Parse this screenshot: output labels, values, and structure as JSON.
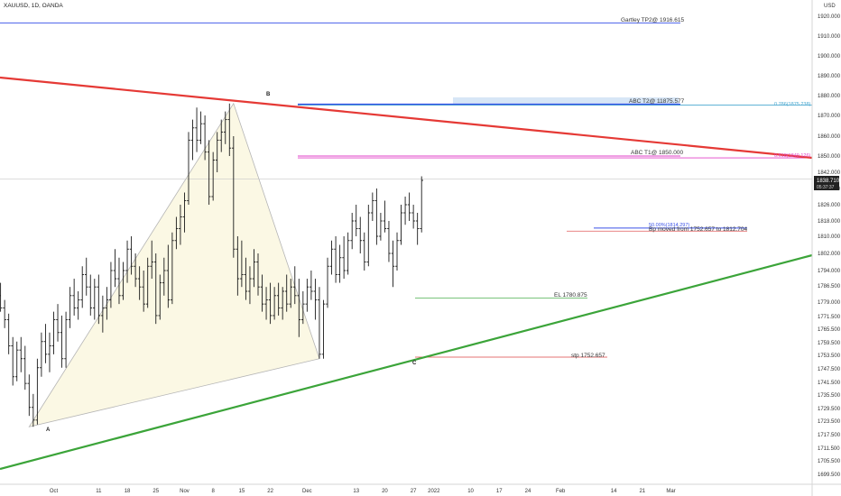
{
  "header": {
    "symbol": "XAUUSD, 1D, OANDA",
    "currency": "USD"
  },
  "colors": {
    "trend_red": "#e53935",
    "trend_green": "#3ba439",
    "level_blue": "#3a52e8",
    "level_magenta": "#e040c8",
    "level_cyan": "#4aa8d0",
    "stop_red": "#e57373",
    "entry_green": "#66bb6a",
    "harmonic_fill": "#fbf8e4",
    "bar": "#1a1a1a"
  },
  "chart_data": {
    "type": "ohlc",
    "ylim": [
      1695,
      1922
    ],
    "y_ticks": [
      1699.5,
      1705.5,
      1711.5,
      1717.5,
      1723.5,
      1729.5,
      1735.5,
      1741.5,
      1747.5,
      1753.5,
      1759.5,
      1765.5,
      1771.5,
      1779,
      1786.5,
      1794,
      1802,
      1810,
      1818,
      1826,
      1834,
      1842,
      1850,
      1860,
      1870,
      1880,
      1890,
      1900,
      1910,
      1920
    ],
    "y_tick_labels": [
      "1699.500",
      "1705.500",
      "1711.500",
      "1717.500",
      "1723.500",
      "1729.500",
      "1735.500",
      "1741.500",
      "1747.500",
      "1753.500",
      "1759.500",
      "1765.500",
      "1771.500",
      "1779.000",
      "1786.500",
      "1794.000",
      "1802.000",
      "1810.000",
      "1818.000",
      "1826.000",
      "1834.000",
      "1842.000",
      "1850.000",
      "1860.000",
      "1870.000",
      "1880.000",
      "1890.000",
      "1900.000",
      "1910.000",
      "1920.000"
    ],
    "x_labels": [
      {
        "day": 0,
        "label": "Oct"
      },
      {
        "day": 11,
        "label": "11"
      },
      {
        "day": 18,
        "label": "18"
      },
      {
        "day": 25,
        "label": "25"
      },
      {
        "day": 32,
        "label": "Nov"
      },
      {
        "day": 39,
        "label": "8"
      },
      {
        "day": 46,
        "label": "15"
      },
      {
        "day": 53,
        "label": "22"
      },
      {
        "day": 62,
        "label": "Dec"
      },
      {
        "day": 74,
        "label": "13"
      },
      {
        "day": 81,
        "label": "20"
      },
      {
        "day": 88,
        "label": "27"
      },
      {
        "day": 93,
        "label": "2022"
      },
      {
        "day": 102,
        "label": "10"
      },
      {
        "day": 109,
        "label": "17"
      },
      {
        "day": 116,
        "label": "24"
      },
      {
        "day": 124,
        "label": "Feb"
      },
      {
        "day": 137,
        "label": "14"
      },
      {
        "day": 144,
        "label": "21"
      },
      {
        "day": 151,
        "label": "Mar"
      }
    ],
    "bars": [
      [
        -14,
        1776,
        1786,
        1768,
        1782
      ],
      [
        -13,
        1782,
        1788,
        1774,
        1776
      ],
      [
        -12,
        1776,
        1780,
        1766,
        1770
      ],
      [
        -11,
        1770,
        1773,
        1754,
        1758
      ],
      [
        -10,
        1758,
        1762,
        1740,
        1744
      ],
      [
        -9,
        1744,
        1760,
        1742,
        1756
      ],
      [
        -8,
        1756,
        1762,
        1746,
        1752
      ],
      [
        -7,
        1752,
        1758,
        1738,
        1741
      ],
      [
        -6,
        1741,
        1745,
        1726,
        1730
      ],
      [
        -5,
        1730,
        1736,
        1721,
        1724
      ],
      [
        -4,
        1724,
        1752,
        1722,
        1748
      ],
      [
        -3,
        1748,
        1764,
        1744,
        1760
      ],
      [
        -2,
        1760,
        1768,
        1750,
        1754
      ],
      [
        -1,
        1754,
        1764,
        1746,
        1758
      ],
      [
        0,
        1758,
        1774,
        1754,
        1770
      ],
      [
        1,
        1770,
        1778,
        1760,
        1764
      ],
      [
        2,
        1764,
        1772,
        1748,
        1752
      ],
      [
        3,
        1752,
        1774,
        1748,
        1770
      ],
      [
        4,
        1770,
        1786,
        1766,
        1782
      ],
      [
        5,
        1782,
        1790,
        1772,
        1776
      ],
      [
        6,
        1776,
        1784,
        1770,
        1780
      ],
      [
        7,
        1780,
        1796,
        1776,
        1792
      ],
      [
        8,
        1792,
        1800,
        1782,
        1786
      ],
      [
        9,
        1786,
        1792,
        1772,
        1776
      ],
      [
        10,
        1776,
        1790,
        1770,
        1786
      ],
      [
        11,
        1786,
        1792,
        1768,
        1772
      ],
      [
        12,
        1772,
        1782,
        1764,
        1776
      ],
      [
        13,
        1776,
        1786,
        1770,
        1780
      ],
      [
        14,
        1780,
        1798,
        1776,
        1794
      ],
      [
        15,
        1794,
        1804,
        1786,
        1790
      ],
      [
        16,
        1790,
        1800,
        1778,
        1782
      ],
      [
        17,
        1782,
        1798,
        1780,
        1794
      ],
      [
        18,
        1794,
        1808,
        1788,
        1804
      ],
      [
        19,
        1804,
        1810,
        1792,
        1796
      ],
      [
        20,
        1796,
        1802,
        1786,
        1790
      ],
      [
        21,
        1790,
        1796,
        1780,
        1786
      ],
      [
        22,
        1786,
        1794,
        1774,
        1778
      ],
      [
        23,
        1778,
        1800,
        1776,
        1796
      ],
      [
        24,
        1796,
        1808,
        1790,
        1798
      ],
      [
        25,
        1798,
        1802,
        1768,
        1772
      ],
      [
        26,
        1772,
        1792,
        1770,
        1788
      ],
      [
        27,
        1788,
        1800,
        1782,
        1794
      ],
      [
        28,
        1794,
        1806,
        1776,
        1780
      ],
      [
        29,
        1780,
        1812,
        1778,
        1808
      ],
      [
        30,
        1808,
        1820,
        1804,
        1814
      ],
      [
        31,
        1814,
        1826,
        1806,
        1820
      ],
      [
        32,
        1820,
        1832,
        1812,
        1828
      ],
      [
        33,
        1828,
        1862,
        1826,
        1858
      ],
      [
        34,
        1858,
        1868,
        1848,
        1864
      ],
      [
        35,
        1864,
        1874,
        1852,
        1858
      ],
      [
        36,
        1858,
        1872,
        1856,
        1866
      ],
      [
        37,
        1866,
        1870,
        1848,
        1852
      ],
      [
        38,
        1852,
        1858,
        1826,
        1830
      ],
      [
        39,
        1830,
        1852,
        1828,
        1848
      ],
      [
        40,
        1848,
        1862,
        1842,
        1858
      ],
      [
        41,
        1858,
        1868,
        1852,
        1862
      ],
      [
        42,
        1862,
        1872,
        1856,
        1868
      ],
      [
        43,
        1868,
        1876,
        1850,
        1854
      ],
      [
        44,
        1854,
        1860,
        1800,
        1804
      ],
      [
        45,
        1804,
        1810,
        1782,
        1790
      ],
      [
        46,
        1790,
        1808,
        1786,
        1792
      ],
      [
        47,
        1792,
        1800,
        1780,
        1784
      ],
      [
        48,
        1784,
        1796,
        1778,
        1790
      ],
      [
        49,
        1790,
        1804,
        1786,
        1798
      ],
      [
        50,
        1798,
        1802,
        1782,
        1786
      ],
      [
        51,
        1786,
        1792,
        1774,
        1778
      ],
      [
        52,
        1778,
        1786,
        1770,
        1780
      ],
      [
        53,
        1780,
        1788,
        1768,
        1772
      ],
      [
        54,
        1772,
        1786,
        1770,
        1782
      ],
      [
        55,
        1782,
        1788,
        1772,
        1776
      ],
      [
        56,
        1776,
        1786,
        1770,
        1784
      ],
      [
        57,
        1784,
        1792,
        1774,
        1778
      ],
      [
        58,
        1778,
        1790,
        1776,
        1786
      ],
      [
        59,
        1786,
        1796,
        1778,
        1782
      ],
      [
        60,
        1782,
        1790,
        1762,
        1770
      ],
      [
        61,
        1770,
        1784,
        1768,
        1778
      ],
      [
        62,
        1778,
        1790,
        1774,
        1786
      ],
      [
        63,
        1786,
        1794,
        1780,
        1784
      ],
      [
        64,
        1784,
        1790,
        1770,
        1780
      ],
      [
        65,
        1780,
        1786,
        1752,
        1754
      ],
      [
        66,
        1754,
        1780,
        1752,
        1778
      ],
      [
        67,
        1778,
        1800,
        1776,
        1796
      ],
      [
        68,
        1796,
        1808,
        1792,
        1804
      ],
      [
        69,
        1804,
        1810,
        1788,
        1792
      ],
      [
        70,
        1792,
        1806,
        1788,
        1800
      ],
      [
        71,
        1800,
        1810,
        1790,
        1794
      ],
      [
        72,
        1794,
        1812,
        1792,
        1808
      ],
      [
        73,
        1808,
        1822,
        1804,
        1818
      ],
      [
        74,
        1818,
        1826,
        1810,
        1814
      ],
      [
        75,
        1814,
        1820,
        1802,
        1808
      ],
      [
        76,
        1808,
        1812,
        1794,
        1798
      ],
      [
        77,
        1798,
        1826,
        1796,
        1822
      ],
      [
        78,
        1822,
        1832,
        1818,
        1828
      ],
      [
        79,
        1828,
        1834,
        1806,
        1810
      ],
      [
        80,
        1810,
        1822,
        1808,
        1818
      ],
      [
        81,
        1818,
        1828,
        1812,
        1814
      ],
      [
        82,
        1814,
        1818,
        1798,
        1802
      ],
      [
        83,
        1802,
        1808,
        1786,
        1796
      ],
      [
        84,
        1796,
        1812,
        1794,
        1808
      ],
      [
        85,
        1808,
        1826,
        1806,
        1822
      ],
      [
        86,
        1822,
        1830,
        1816,
        1826
      ],
      [
        87,
        1826,
        1832,
        1818,
        1822
      ],
      [
        88,
        1822,
        1826,
        1814,
        1818
      ],
      [
        89,
        1818,
        1822,
        1806,
        1814
      ],
      [
        90,
        1814,
        1840,
        1812,
        1838
      ]
    ]
  },
  "drawings": {
    "gartley_tp2": "Gartley TP2@ 1916.615",
    "abc_t2": "ABC T2@ 11875.577",
    "fib_0786": "0.786(1875.238)",
    "abc_t1": "ABC T1@ 1850.000",
    "fib_0618": "0.618(1849.126)",
    "fib_050": "50.00%(1814.297)",
    "bp_moved": "Bp moved from 1752.657 to 1812.704",
    "el": "EL 1780.875",
    "stp": "stp 1752.657",
    "point_a": "A",
    "point_b": "B",
    "point_c": "C",
    "last_price": "1838.710",
    "countdown": "05:37:37"
  }
}
